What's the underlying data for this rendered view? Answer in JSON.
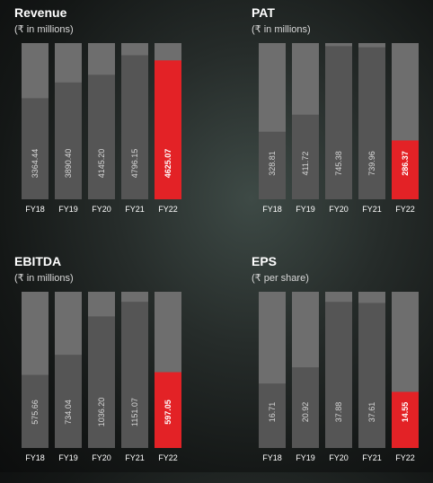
{
  "chart_data": [
    {
      "type": "bar",
      "title": "Revenue",
      "subtitle": "(₹ in millions)",
      "categories": [
        "FY18",
        "FY19",
        "FY20",
        "FY21",
        "FY22"
      ],
      "values": [
        3364.44,
        3890.4,
        4145.2,
        4796.15,
        4625.07
      ],
      "labels": [
        "3364.44",
        "3890.40",
        "4145.20",
        "4796.15",
        "4625.07"
      ],
      "ylim": [
        0,
        5200
      ],
      "highlight_index": 4,
      "highlight_color": "#e32226",
      "bar_color": "#555555",
      "track_color": "#6e6e6e",
      "grid": false
    },
    {
      "type": "bar",
      "title": "PAT",
      "subtitle": "(₹ in millions)",
      "categories": [
        "FY18",
        "FY19",
        "FY20",
        "FY21",
        "FY22"
      ],
      "values": [
        328.81,
        411.72,
        745.38,
        739.96,
        286.37
      ],
      "labels": [
        "328.81",
        "411.72",
        "745.38",
        "739.96",
        "286.37"
      ],
      "ylim": [
        0,
        760
      ],
      "highlight_index": 4,
      "highlight_color": "#e32226",
      "bar_color": "#555555",
      "track_color": "#6e6e6e",
      "grid": false
    },
    {
      "type": "bar",
      "title": "EBITDA",
      "subtitle": "(₹ in millions)",
      "categories": [
        "FY18",
        "FY19",
        "FY20",
        "FY21",
        "FY22"
      ],
      "values": [
        575.66,
        734.04,
        1036.2,
        1151.07,
        597.05
      ],
      "labels": [
        "575.66",
        "734.04",
        "1036.20",
        "1151.07",
        "597.05"
      ],
      "ylim": [
        0,
        1230
      ],
      "highlight_index": 4,
      "highlight_color": "#e32226",
      "bar_color": "#555555",
      "track_color": "#6e6e6e",
      "grid": false
    },
    {
      "type": "bar",
      "title": "EPS",
      "subtitle": "(₹ per share)",
      "categories": [
        "FY18",
        "FY19",
        "FY20",
        "FY21",
        "FY22"
      ],
      "values": [
        16.71,
        20.92,
        37.88,
        37.61,
        14.55
      ],
      "labels": [
        "16.71",
        "20.92",
        "37.88",
        "37.61",
        "14.55"
      ],
      "ylim": [
        0,
        40.5
      ],
      "highlight_index": 4,
      "highlight_color": "#e32226",
      "bar_color": "#555555",
      "track_color": "#6e6e6e",
      "grid": false
    }
  ]
}
